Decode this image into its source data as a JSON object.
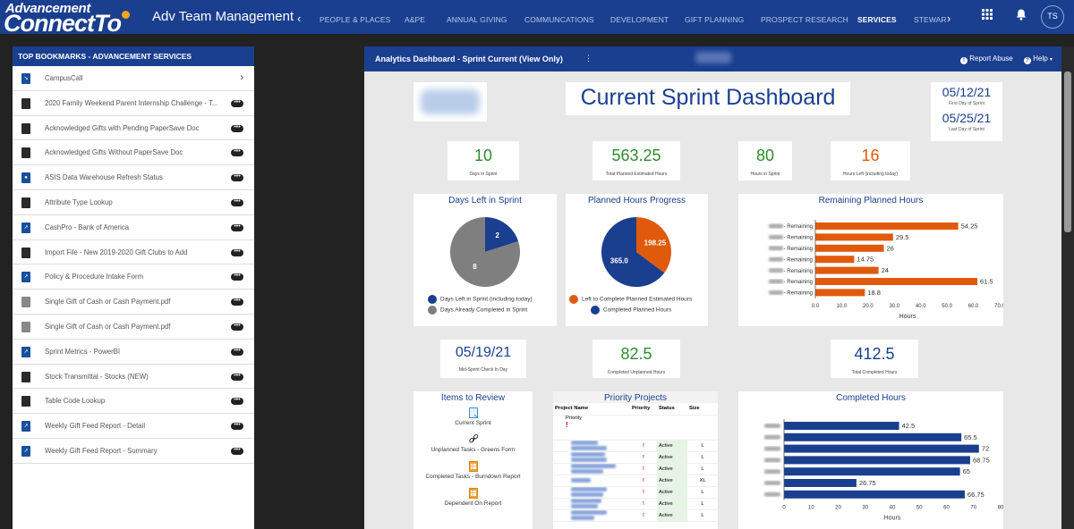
{
  "topbar": {
    "logo_line1": "Advancement",
    "logo_line2": "ConnectTo",
    "app_title": "Adv Team Management",
    "nav": [
      {
        "label": "PEOPLE & PLACES",
        "active": false
      },
      {
        "label": "A&PE",
        "active": false
      },
      {
        "label": "ANNUAL GIVING",
        "active": false
      },
      {
        "label": "COMMUNCATIONS",
        "active": false
      },
      {
        "label": "DEVELOPMENT",
        "active": false
      },
      {
        "label": "GIFT PLANNING",
        "active": false
      },
      {
        "label": "PROSPECT RESEARCH",
        "active": false
      },
      {
        "label": "SERVICES",
        "active": true
      },
      {
        "label": "STEWAR",
        "active": false
      }
    ],
    "nav_prev": "‹",
    "nav_next": "›",
    "apps_icon": "grid-icon",
    "bell_icon": "bell-icon",
    "avatar_initials": "TS",
    "brand_color": "#1a3f8f"
  },
  "sidebar": {
    "title": "TOP BOOKMARKS - ADVANCEMENT SERVICES",
    "items": [
      {
        "label": "CampusCall",
        "icon": "link-icon",
        "kind": "blue",
        "action": "chevron"
      },
      {
        "label": "2020 Family Weekend Parent Internship Challenge - T...",
        "icon": "report-icon",
        "kind": "dark",
        "action": "more"
      },
      {
        "label": "Acknowledged Gifts with Pending PaperSave Doc",
        "icon": "report-icon",
        "kind": "dark",
        "action": "more"
      },
      {
        "label": "Acknowledged Gifts Without PaperSave Doc",
        "icon": "report-icon",
        "kind": "dark",
        "action": "more"
      },
      {
        "label": "ASIS Data Warehouse Refresh Status",
        "icon": "info-icon",
        "kind": "blue",
        "action": "more"
      },
      {
        "label": "Attribute Type Lookup",
        "icon": "report-icon",
        "kind": "dark",
        "action": "more"
      },
      {
        "label": "CashPro - Bank of America",
        "icon": "external-link-icon",
        "kind": "blue",
        "action": "more"
      },
      {
        "label": "Import File - New 2019-2020 Gift Clubs to Add",
        "icon": "report-icon",
        "kind": "dark",
        "action": "more"
      },
      {
        "label": "Policy & Procedure Intake Form",
        "icon": "external-link-icon",
        "kind": "blue",
        "action": "more"
      },
      {
        "label": "Single Gift of Cash or Cash Payment.pdf",
        "icon": "file-icon",
        "kind": "grey",
        "action": "more"
      },
      {
        "label": "Single Gift of Cash or Cash Payment.pdf",
        "icon": "file-icon",
        "kind": "grey",
        "action": "more"
      },
      {
        "label": "Sprint Metrics - PowerBI",
        "icon": "external-link-icon",
        "kind": "blue",
        "action": "more"
      },
      {
        "label": "Stock Transmittal - Stocks (NEW)",
        "icon": "report-icon",
        "kind": "dark",
        "action": "more"
      },
      {
        "label": "Table Code Lookup",
        "icon": "report-icon",
        "kind": "dark",
        "action": "more"
      },
      {
        "label": "Weekly Gift Feed Report - Detail",
        "icon": "external-link-icon",
        "kind": "blue",
        "action": "more"
      },
      {
        "label": "Weekly Gift Feed Report - Summary",
        "icon": "external-link-icon",
        "kind": "blue",
        "action": "more"
      }
    ]
  },
  "panel": {
    "title": "Analytics Dashboard - Sprint Current (View Only)",
    "menu_glyph": "⋮",
    "report_abuse": "Report Abuse",
    "help": "Help"
  },
  "dashboard": {
    "title": "Current Sprint Dashboard",
    "first_day": {
      "value": "05/12/21",
      "label": "First Day of Sprint"
    },
    "last_day": {
      "value": "05/25/21",
      "label": "Last Day of Sprint"
    },
    "kpis": [
      {
        "value": "10",
        "label": "Days in Sprint",
        "color": "#2e8b2e"
      },
      {
        "value": "563.25",
        "label": "Total Planned Estimated Hours",
        "color": "#2e8b2e"
      },
      {
        "value": "80",
        "label": "Hours in Sprint",
        "color": "#2e8b2e"
      },
      {
        "value": "16",
        "label": "Hours Left (including today)",
        "color": "#e05a0c"
      }
    ],
    "kpis2": [
      {
        "value": "05/19/21",
        "label": "Mid-Sprint Check In Day",
        "color": "#1a3f8f"
      },
      {
        "value": "82.5",
        "label": "Completed Unplanned Hours",
        "color": "#2e8b2e"
      },
      {
        "value": "412.5",
        "label": "Total Completed Hours",
        "color": "#1a3f8f"
      }
    ],
    "items_to_review": {
      "title": "Items to Review",
      "items": [
        {
          "label": "Current Sprint",
          "icon": "document-icon"
        },
        {
          "label": "Unplanned Tasks - Greens Form",
          "icon": "link-icon"
        },
        {
          "label": "Completed Tasks - Burndown Report",
          "icon": "report-icon"
        },
        {
          "label": "Dependent On Report",
          "icon": "report-icon"
        }
      ]
    },
    "priority_projects": {
      "title": "Priority Projects",
      "columns": [
        "Project Name",
        "Priority",
        "Status",
        "Size"
      ],
      "filter_label": "Priority",
      "filter_mark": "!",
      "rows": [
        {
          "priority": "!",
          "status": "Active",
          "size": "L"
        },
        {
          "priority": "!",
          "status": "Active",
          "size": "L"
        },
        {
          "priority": "!",
          "status": "Active",
          "size": "L"
        },
        {
          "priority": "!",
          "status": "Active",
          "size": "XL"
        },
        {
          "priority": "!",
          "status": "Active",
          "size": "L"
        },
        {
          "priority": "!",
          "status": "Active",
          "size": "L"
        },
        {
          "priority": "!",
          "status": "Active",
          "size": "L"
        }
      ]
    }
  },
  "chart_data": [
    {
      "type": "pie",
      "title": "Days Left in Sprint",
      "labels": [
        "Days Left in Sprint (including today)",
        "Days Already Completed in Sprint"
      ],
      "values": [
        2,
        8
      ],
      "colors": [
        "#1a3f8f",
        "#7f7f7f"
      ]
    },
    {
      "type": "pie",
      "title": "Planned Hours Progress",
      "labels": [
        "Left to Complete Planned Estimated Hours",
        "Completed Planned Hours"
      ],
      "values": [
        198.25,
        365.0
      ],
      "value_labels": [
        "198.25",
        "365.0"
      ],
      "colors": [
        "#e05a0c",
        "#1a3f8f"
      ]
    },
    {
      "type": "bar",
      "orientation": "horizontal",
      "title": "Remaining Planned Hours",
      "category_suffix": " - Remaining",
      "values": [
        54.25,
        29.5,
        26,
        14.75,
        24,
        61.5,
        18.8
      ],
      "value_labels": [
        "54.25",
        "29.5",
        "26",
        "14.75",
        "24",
        "61.5",
        "18.8"
      ],
      "xlabel": "Hours",
      "xlim": [
        0,
        70
      ],
      "ticks": [
        "0.0",
        "10.0",
        "20.0",
        "30.0",
        "40.0",
        "50.0",
        "60.0",
        "70.0"
      ],
      "color": "#e05a0c"
    },
    {
      "type": "bar",
      "orientation": "horizontal",
      "title": "Completed Hours",
      "values": [
        42.5,
        65.5,
        72,
        68.75,
        65,
        26.75,
        66.75
      ],
      "value_labels": [
        "42.5",
        "65.5",
        "72",
        "68.75",
        "65",
        "26.75",
        "66.75"
      ],
      "xlabel": "Hours",
      "xlim": [
        0,
        80
      ],
      "ticks": [
        "0",
        "10",
        "20",
        "30",
        "40",
        "50",
        "60",
        "70",
        "80"
      ],
      "color": "#1a3f8f"
    }
  ]
}
